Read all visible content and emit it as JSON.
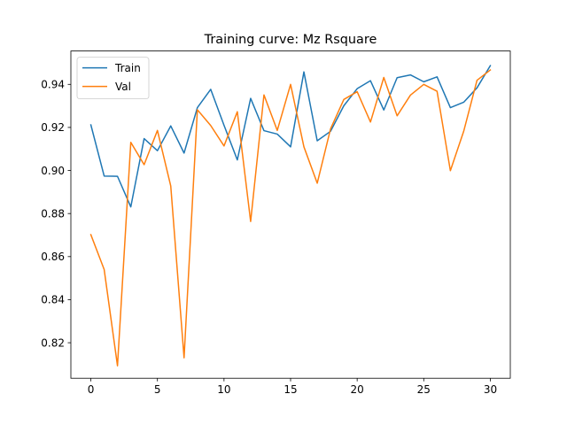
{
  "chart_data": {
    "type": "line",
    "title": "Training curve: Mz Rsquare",
    "xlabel": "",
    "ylabel": "",
    "x": [
      0,
      1,
      2,
      3,
      4,
      5,
      6,
      7,
      8,
      9,
      10,
      11,
      12,
      13,
      14,
      15,
      16,
      17,
      18,
      19,
      20,
      21,
      22,
      23,
      24,
      25,
      26,
      27,
      28,
      29,
      30
    ],
    "xlim": [
      -1.5,
      31.5
    ],
    "ylim": [
      0.8035,
      0.9555
    ],
    "xticks": [
      0,
      5,
      10,
      15,
      20,
      25,
      30
    ],
    "xtick_labels": [
      "0",
      "5",
      "10",
      "15",
      "20",
      "25",
      "30"
    ],
    "yticks": [
      0.82,
      0.84,
      0.86,
      0.88,
      0.9,
      0.92,
      0.94
    ],
    "ytick_labels": [
      "0.82",
      "0.84",
      "0.86",
      "0.88",
      "0.90",
      "0.92",
      "0.94"
    ],
    "grid": false,
    "legend_position": "upper-left",
    "series": [
      {
        "name": "Train",
        "color": "#1f77b4",
        "values": [
          0.9212,
          0.8974,
          0.8973,
          0.8831,
          0.9148,
          0.9092,
          0.9207,
          0.9081,
          0.9292,
          0.9377,
          0.921,
          0.9049,
          0.9335,
          0.9185,
          0.9169,
          0.911,
          0.9458,
          0.9138,
          0.9182,
          0.9301,
          0.938,
          0.9417,
          0.9281,
          0.9431,
          0.9444,
          0.9412,
          0.9435,
          0.9292,
          0.9317,
          0.9384,
          0.9487
        ]
      },
      {
        "name": "Val",
        "color": "#ff7f0e",
        "values": [
          0.8702,
          0.854,
          0.8093,
          0.9131,
          0.9027,
          0.9186,
          0.8928,
          0.813,
          0.9282,
          0.9209,
          0.9114,
          0.9273,
          0.8763,
          0.9351,
          0.9186,
          0.94,
          0.911,
          0.8941,
          0.9193,
          0.933,
          0.9366,
          0.9225,
          0.9432,
          0.9254,
          0.935,
          0.94,
          0.9368,
          0.8999,
          0.9182,
          0.9419,
          0.9467
        ]
      }
    ]
  }
}
